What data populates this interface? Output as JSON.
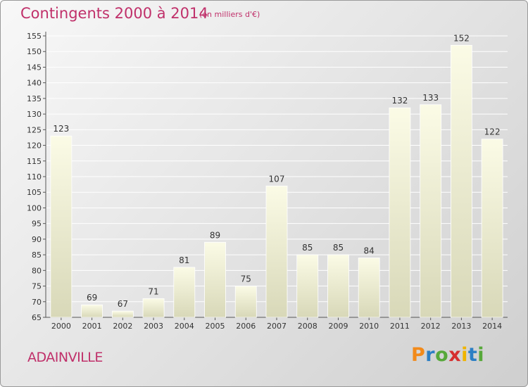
{
  "header": {
    "title": "Contingents 2000 à 2014",
    "subtitle": "(en milliers d'€)"
  },
  "footer": {
    "commune": "ADAINVILLE",
    "logo_letters": [
      "P",
      "r",
      "o",
      "x",
      "i",
      "t",
      "i"
    ],
    "logo_colors": [
      "#f28a1a",
      "#2c7fc4",
      "#57a83a",
      "#d62f2f",
      "#f0b400",
      "#2c7fc4",
      "#57a83a"
    ]
  },
  "chart_data": {
    "type": "bar",
    "categories": [
      "2000",
      "2001",
      "2002",
      "2003",
      "2004",
      "2005",
      "2006",
      "2007",
      "2008",
      "2009",
      "2010",
      "2011",
      "2012",
      "2013",
      "2014"
    ],
    "values": [
      123,
      69,
      67,
      71,
      81,
      89,
      75,
      107,
      85,
      85,
      84,
      132,
      133,
      152,
      122
    ],
    "ylim": [
      65,
      155
    ],
    "yticks": [
      65,
      70,
      75,
      80,
      85,
      90,
      95,
      100,
      105,
      110,
      115,
      120,
      125,
      130,
      135,
      140,
      145,
      150,
      155
    ],
    "grid": true,
    "bar_color": "#f5f5d6",
    "bar_shade": "#d6d6b4"
  }
}
